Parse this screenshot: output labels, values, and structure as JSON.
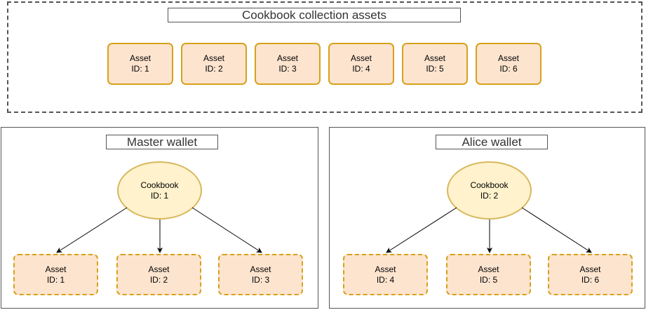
{
  "collection": {
    "title": "Cookbook collection assets",
    "assets": [
      {
        "label": "Asset",
        "id": "ID: 1"
      },
      {
        "label": "Asset",
        "id": "ID: 2"
      },
      {
        "label": "Asset",
        "id": "ID: 3"
      },
      {
        "label": "Asset",
        "id": "ID: 4"
      },
      {
        "label": "Asset",
        "id": "ID: 5"
      },
      {
        "label": "Asset",
        "id": "ID: 6"
      }
    ]
  },
  "master_wallet": {
    "title": "Master wallet",
    "cookbook": {
      "label": "Cookbook",
      "id": "ID: 1"
    },
    "assets": [
      {
        "label": "Asset",
        "id": "ID: 1"
      },
      {
        "label": "Asset",
        "id": "ID: 2"
      },
      {
        "label": "Asset",
        "id": "ID: 3"
      }
    ]
  },
  "alice_wallet": {
    "title": "Alice wallet",
    "cookbook": {
      "label": "Cookbook",
      "id": "ID: 2"
    },
    "assets": [
      {
        "label": "Asset",
        "id": "ID: 4"
      },
      {
        "label": "Asset",
        "id": "ID: 5"
      },
      {
        "label": "Asset",
        "id": "ID: 6"
      }
    ]
  },
  "colors": {
    "asset_fill": "#fde4cf",
    "asset_border": "#d7a21b",
    "cookbook_fill": "#fff2cc",
    "cookbook_border": "#d7b85c",
    "frame_border": "#555555"
  }
}
